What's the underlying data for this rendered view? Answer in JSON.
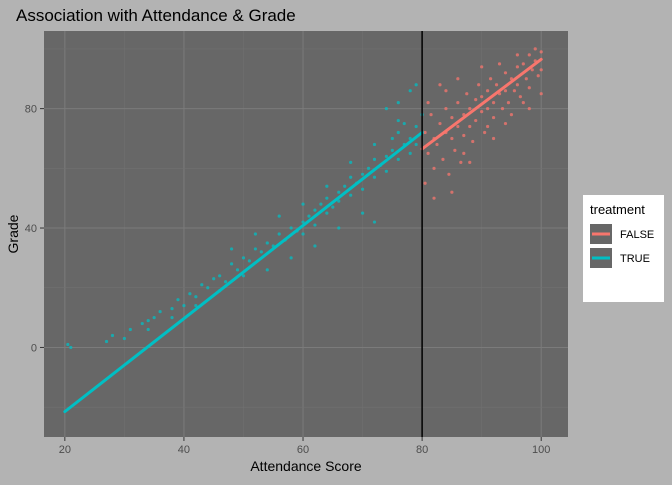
{
  "chart_data": {
    "type": "scatter",
    "title": "Association with Attendance & Grade",
    "xlabel": "Attendance Score",
    "ylabel": "Grade",
    "xlim": [
      16.5,
      104.5
    ],
    "ylim": [
      -30,
      106
    ],
    "x_ticks": [
      20,
      40,
      60,
      80,
      100
    ],
    "y_ticks": [
      0,
      40,
      80
    ],
    "x_tick_labels": [
      "20",
      "40",
      "60",
      "80",
      "100"
    ],
    "y_tick_labels": [
      "0",
      "40",
      "80"
    ],
    "grid": true,
    "cutoff_line": {
      "x": 80
    },
    "legend": {
      "title": "treatment",
      "position": "right",
      "entries": [
        {
          "label": "FALSE",
          "color": "#f8766d"
        },
        {
          "label": "TRUE",
          "color": "#00bfc4"
        }
      ]
    },
    "series": [
      {
        "name": "FALSE",
        "color": "#f8766d",
        "x_range": [
          80,
          100
        ],
        "fit_line": {
          "x": [
            80,
            100
          ],
          "y": [
            66.5,
            96.5
          ]
        },
        "points": [
          [
            80.5,
            72
          ],
          [
            81,
            65
          ],
          [
            81.5,
            78
          ],
          [
            82,
            60
          ],
          [
            82,
            70
          ],
          [
            82.5,
            68
          ],
          [
            83,
            75
          ],
          [
            83.5,
            63
          ],
          [
            84,
            72
          ],
          [
            84,
            80
          ],
          [
            84.5,
            58
          ],
          [
            85,
            70
          ],
          [
            85,
            77
          ],
          [
            85.5,
            66
          ],
          [
            86,
            74
          ],
          [
            86,
            82
          ],
          [
            86.5,
            62
          ],
          [
            87,
            78
          ],
          [
            87,
            71
          ],
          [
            87.5,
            85
          ],
          [
            88,
            74
          ],
          [
            88,
            80
          ],
          [
            88.5,
            69
          ],
          [
            89,
            83
          ],
          [
            89,
            76
          ],
          [
            89.5,
            88
          ],
          [
            90,
            79
          ],
          [
            90,
            84
          ],
          [
            90.5,
            72
          ],
          [
            91,
            86
          ],
          [
            91,
            80
          ],
          [
            91.5,
            90
          ],
          [
            92,
            82
          ],
          [
            92,
            77
          ],
          [
            92.5,
            88
          ],
          [
            93,
            85
          ],
          [
            93.5,
            80
          ],
          [
            94,
            92
          ],
          [
            94,
            86
          ],
          [
            94.5,
            82
          ],
          [
            95,
            90
          ],
          [
            95.5,
            86
          ],
          [
            96,
            94
          ],
          [
            96,
            88
          ],
          [
            96.5,
            84
          ],
          [
            97,
            95
          ],
          [
            97.5,
            90
          ],
          [
            98,
            98
          ],
          [
            98,
            87
          ],
          [
            98.5,
            93
          ],
          [
            99,
            96
          ],
          [
            99.5,
            91
          ],
          [
            100,
            99
          ],
          [
            100,
            85
          ],
          [
            80.5,
            55
          ],
          [
            81,
            82
          ],
          [
            83,
            88
          ],
          [
            85,
            52
          ],
          [
            86,
            90
          ],
          [
            88,
            62
          ],
          [
            90,
            94
          ],
          [
            92,
            70
          ],
          [
            94,
            75
          ],
          [
            96,
            98
          ],
          [
            98,
            80
          ],
          [
            99,
            100
          ],
          [
            82,
            50
          ],
          [
            84,
            86
          ],
          [
            87,
            65
          ],
          [
            91,
            74
          ],
          [
            93,
            95
          ],
          [
            95,
            78
          ],
          [
            97,
            82
          ],
          [
            100,
            93
          ]
        ]
      },
      {
        "name": "TRUE",
        "color": "#00bfc4",
        "x_range": [
          20,
          80
        ],
        "fit_line": {
          "x": [
            20,
            80
          ],
          "y": [
            -21.5,
            72
          ]
        },
        "points": [
          [
            20.5,
            1
          ],
          [
            21,
            0
          ],
          [
            27,
            2
          ],
          [
            28,
            4
          ],
          [
            30,
            3
          ],
          [
            31,
            6
          ],
          [
            33,
            8
          ],
          [
            34,
            9
          ],
          [
            35,
            10
          ],
          [
            36,
            12
          ],
          [
            38,
            13
          ],
          [
            39,
            16
          ],
          [
            40,
            14
          ],
          [
            41,
            18
          ],
          [
            42,
            17
          ],
          [
            43,
            21
          ],
          [
            44,
            20
          ],
          [
            45,
            23
          ],
          [
            46,
            24
          ],
          [
            47,
            22
          ],
          [
            48,
            28
          ],
          [
            49,
            26
          ],
          [
            50,
            30
          ],
          [
            51,
            29
          ],
          [
            52,
            33
          ],
          [
            53,
            32
          ],
          [
            54,
            35
          ],
          [
            55,
            34
          ],
          [
            56,
            38
          ],
          [
            57,
            36
          ],
          [
            58,
            40
          ],
          [
            59,
            39
          ],
          [
            60,
            42
          ],
          [
            60,
            38
          ],
          [
            61,
            44
          ],
          [
            62,
            46
          ],
          [
            62,
            41
          ],
          [
            63,
            48
          ],
          [
            64,
            45
          ],
          [
            64,
            50
          ],
          [
            65,
            47
          ],
          [
            66,
            52
          ],
          [
            66,
            49
          ],
          [
            67,
            54
          ],
          [
            68,
            51
          ],
          [
            68,
            57
          ],
          [
            69,
            55
          ],
          [
            70,
            58
          ],
          [
            70,
            53
          ],
          [
            71,
            60
          ],
          [
            72,
            57
          ],
          [
            72,
            63
          ],
          [
            73,
            61
          ],
          [
            74,
            64
          ],
          [
            74,
            59
          ],
          [
            75,
            66
          ],
          [
            75,
            70
          ],
          [
            76,
            63
          ],
          [
            76,
            72
          ],
          [
            77,
            68
          ],
          [
            77,
            75
          ],
          [
            78,
            70
          ],
          [
            78,
            65
          ],
          [
            79,
            74
          ],
          [
            79,
            68
          ],
          [
            80,
            72
          ],
          [
            80,
            78
          ],
          [
            74,
            80
          ],
          [
            76,
            82
          ],
          [
            78,
            86
          ],
          [
            79,
            88
          ],
          [
            70,
            45
          ],
          [
            72,
            42
          ],
          [
            66,
            40
          ],
          [
            62,
            34
          ],
          [
            58,
            30
          ],
          [
            54,
            26
          ],
          [
            50,
            24
          ],
          [
            46,
            19
          ],
          [
            42,
            14
          ],
          [
            38,
            10
          ],
          [
            34,
            6
          ],
          [
            56,
            44
          ],
          [
            60,
            48
          ],
          [
            64,
            54
          ],
          [
            68,
            62
          ],
          [
            72,
            68
          ],
          [
            76,
            76
          ],
          [
            52,
            38
          ],
          [
            48,
            33
          ]
        ]
      }
    ]
  }
}
